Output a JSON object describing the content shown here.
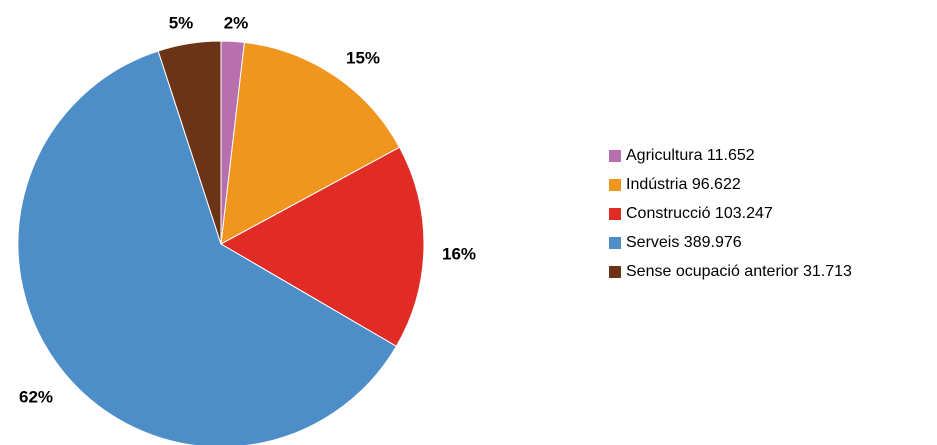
{
  "chart_data": {
    "type": "pie",
    "slices": [
      {
        "label": "Agricultura",
        "value": 11652,
        "value_text": "11.652",
        "pct_label": "2%",
        "color": "#b86fae"
      },
      {
        "label": "Indústria",
        "value": 96622,
        "value_text": "96.622",
        "pct_label": "15%",
        "color": "#f0951e"
      },
      {
        "label": "Construcció",
        "value": 103247,
        "value_text": "103.247",
        "pct_label": "16%",
        "color": "#e12c26"
      },
      {
        "label": "Serveis",
        "value": 389976,
        "value_text": "389.976",
        "pct_label": "62%",
        "color": "#4e8ec8"
      },
      {
        "label": "Sense ocupació anterior",
        "value": 31713,
        "value_text": "31.713",
        "pct_label": "5%",
        "color": "#6b3417"
      }
    ],
    "legend_position": "right"
  },
  "legend": {
    "items": [
      {
        "text": "Agricultura 11.652"
      },
      {
        "text": "Indústria 96.622"
      },
      {
        "text": "Construcció 103.247"
      },
      {
        "text": "Serveis 389.976"
      },
      {
        "text": "Sense ocupació anterior 31.713"
      }
    ]
  }
}
